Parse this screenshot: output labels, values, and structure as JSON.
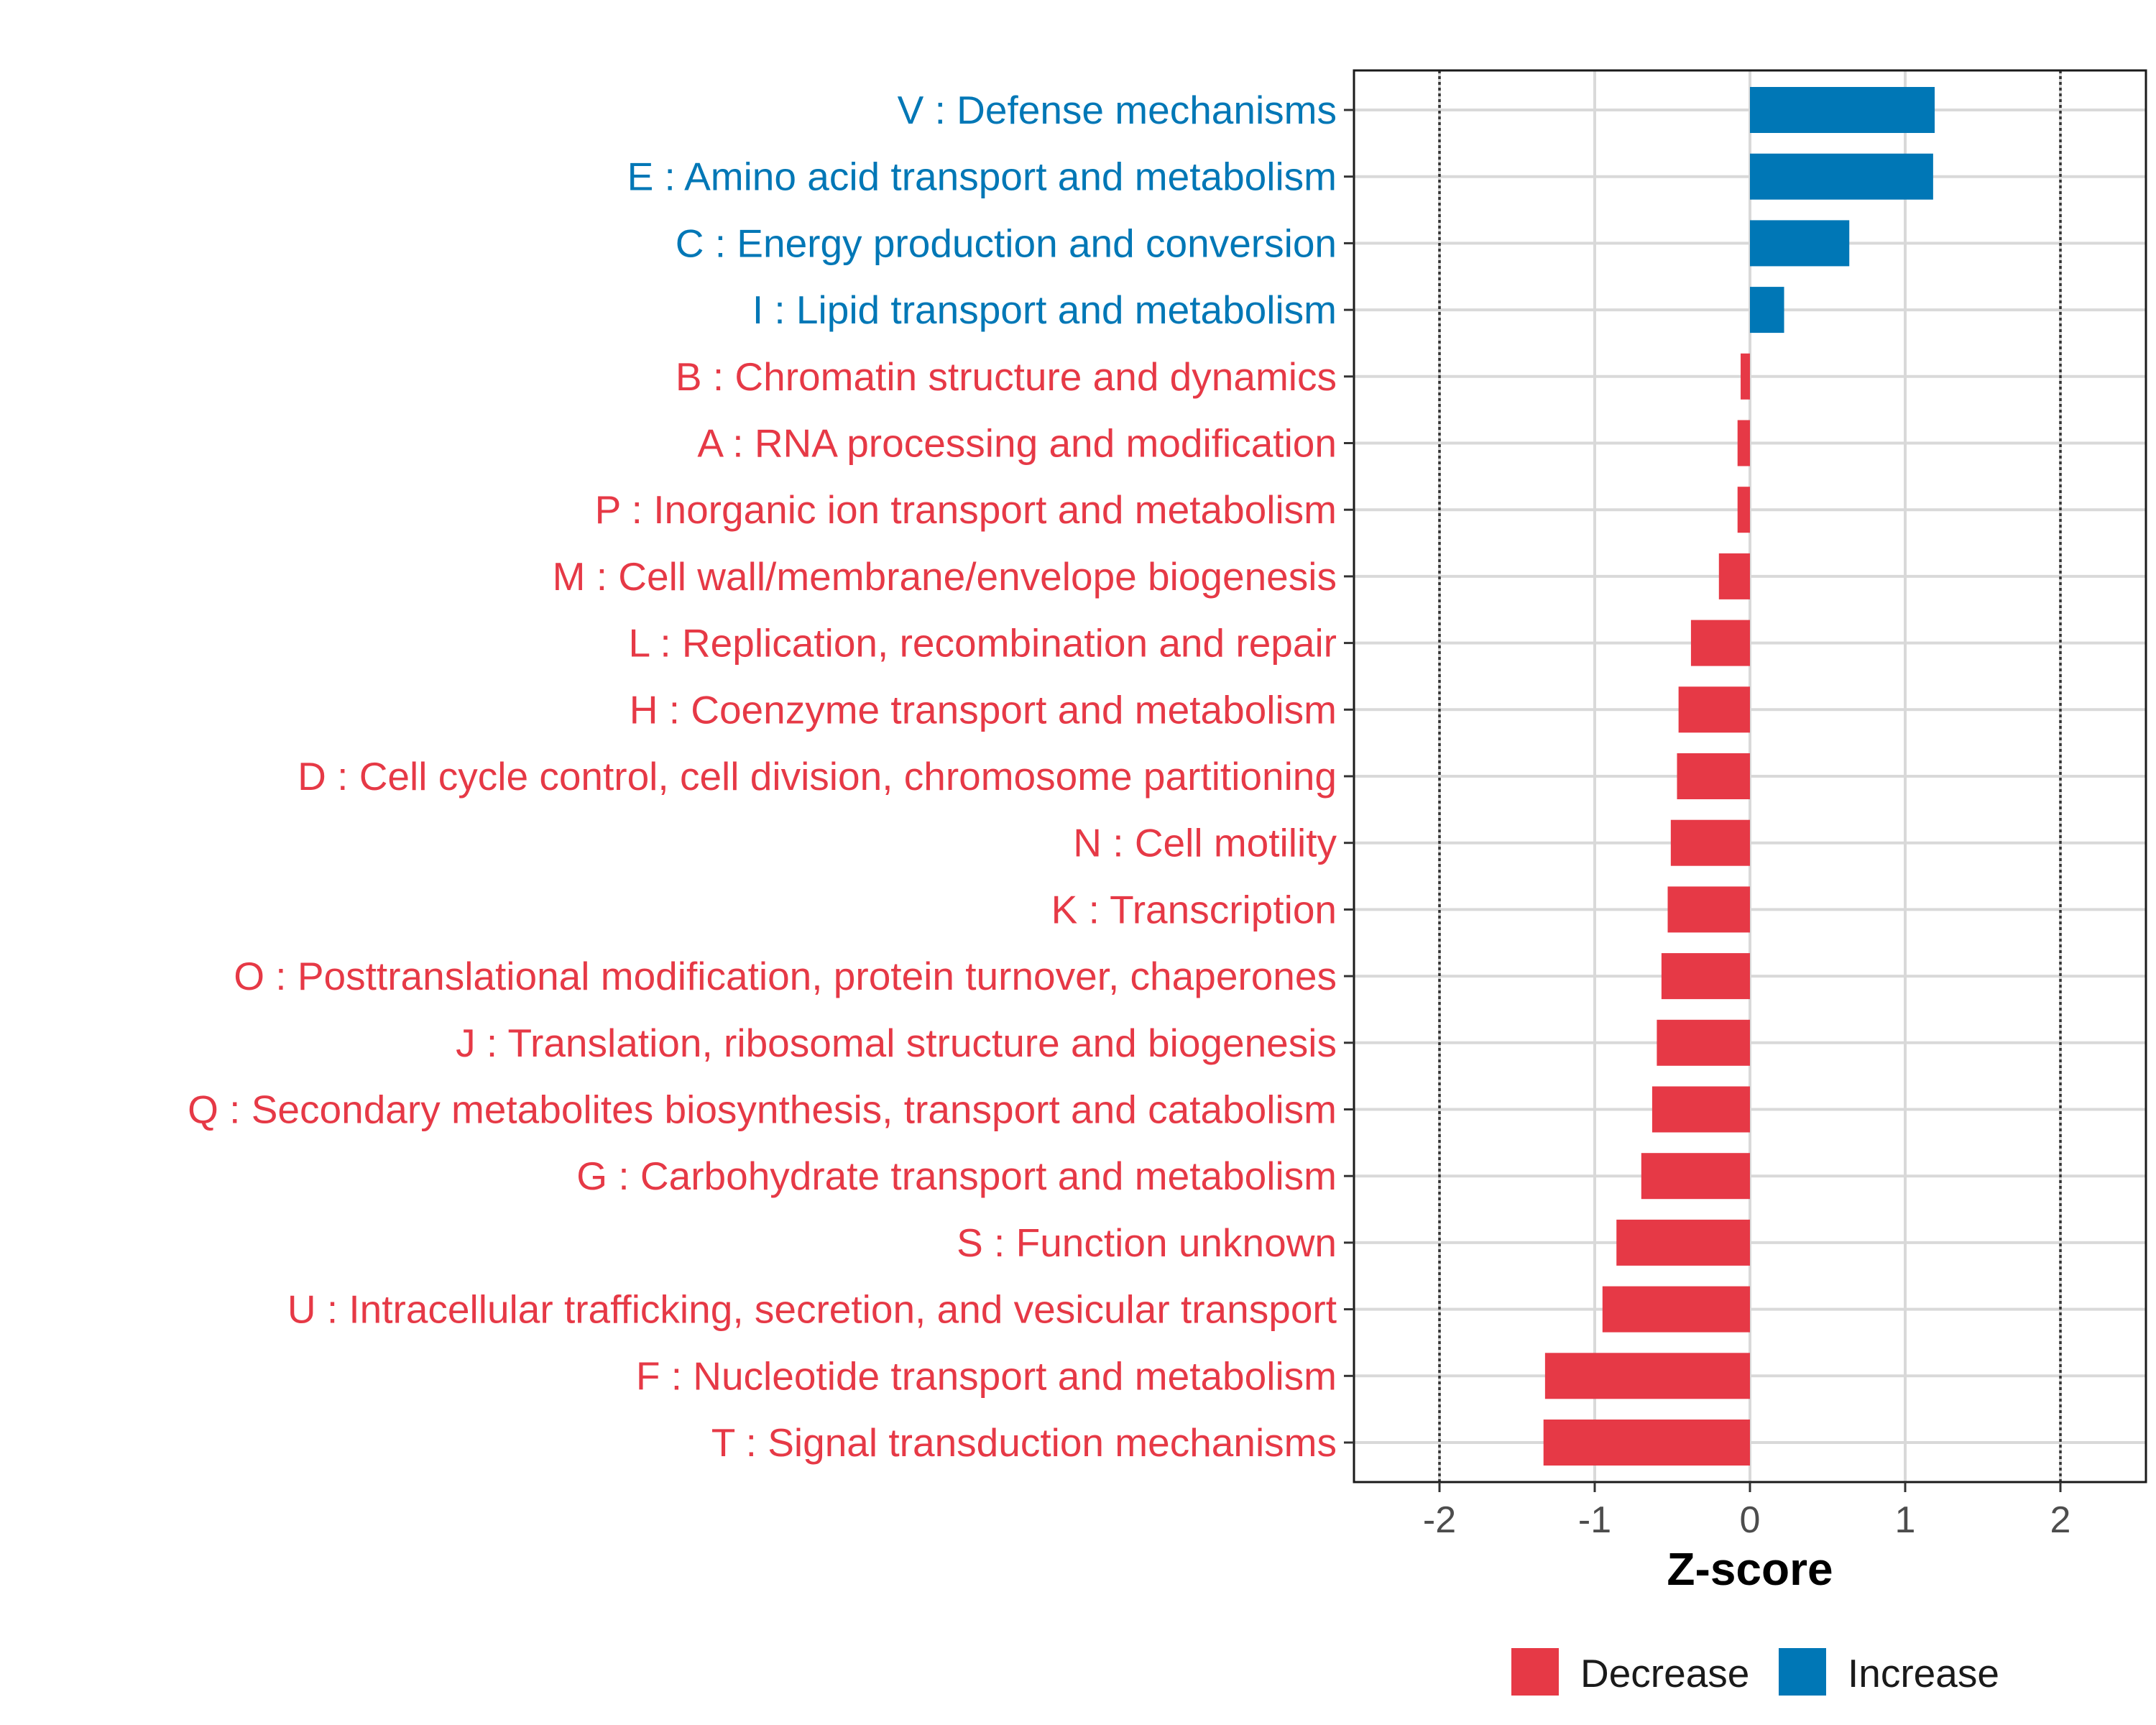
{
  "chart_data": {
    "type": "bar",
    "orientation": "horizontal",
    "xlabel": "Z-score",
    "xlim": [
      -2.55,
      2.55
    ],
    "xticks": [
      -2,
      -1,
      0,
      1,
      2
    ],
    "xtick_labels": [
      "-2",
      "-1",
      "0",
      "1",
      "2"
    ],
    "reference_lines": [
      -2,
      2
    ],
    "grid": true,
    "categories": [
      "V : Defense mechanisms",
      "E : Amino acid transport and metabolism",
      "C : Energy production and conversion",
      "I : Lipid transport and metabolism",
      "B : Chromatin structure and dynamics",
      "A : RNA processing and modification",
      "P : Inorganic ion transport and metabolism",
      "M : Cell wall/membrane/envelope biogenesis",
      "L : Replication, recombination and repair",
      "H : Coenzyme transport and metabolism",
      "D : Cell cycle control, cell division, chromosome partitioning",
      "N : Cell motility",
      "K : Transcription",
      "O : Posttranslational modification, protein turnover, chaperones",
      "J : Translation, ribosomal structure and biogenesis",
      "Q : Secondary metabolites biosynthesis, transport and catabolism",
      "G : Carbohydrate transport and metabolism",
      "S : Function unknown",
      "U : Intracellular trafficking, secretion, and vesicular transport",
      "F : Nucleotide transport and metabolism",
      "T : Signal transduction mechanisms"
    ],
    "values": [
      1.19,
      1.18,
      0.64,
      0.22,
      -0.06,
      -0.08,
      -0.08,
      -0.2,
      -0.38,
      -0.46,
      -0.47,
      -0.51,
      -0.53,
      -0.57,
      -0.6,
      -0.63,
      -0.7,
      -0.86,
      -0.95,
      -1.32,
      -1.33
    ],
    "groups": [
      "Increase",
      "Increase",
      "Increase",
      "Increase",
      "Decrease",
      "Decrease",
      "Decrease",
      "Decrease",
      "Decrease",
      "Decrease",
      "Decrease",
      "Decrease",
      "Decrease",
      "Decrease",
      "Decrease",
      "Decrease",
      "Decrease",
      "Decrease",
      "Decrease",
      "Decrease",
      "Decrease"
    ],
    "legend": [
      {
        "label": "Decrease",
        "color": "#e63946"
      },
      {
        "label": "Increase",
        "color": "#0077b6"
      }
    ],
    "legend_position": "bottom-right"
  }
}
